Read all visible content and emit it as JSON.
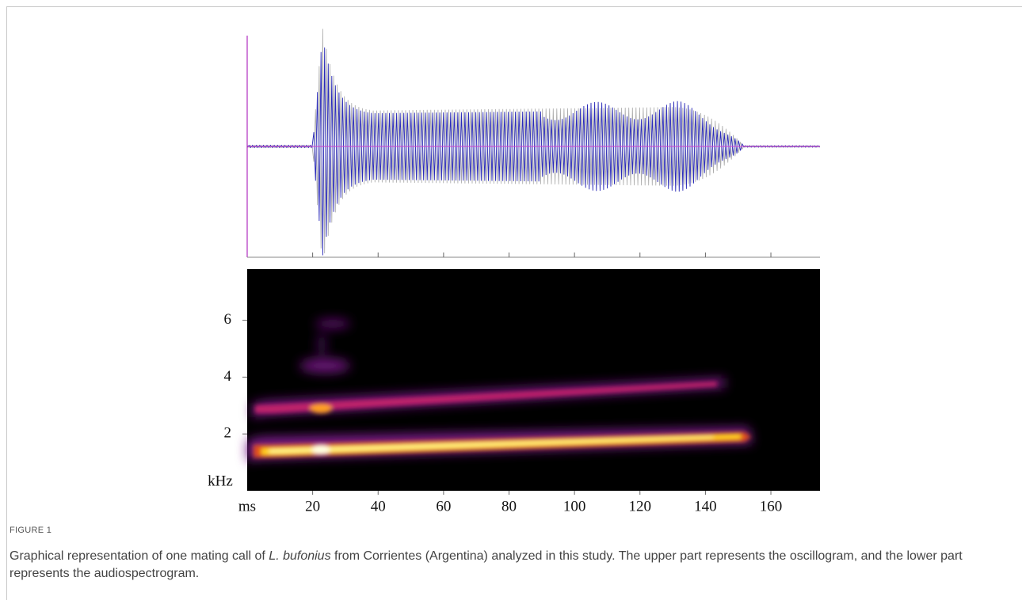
{
  "figure": {
    "label": "FIGURE 1",
    "caption": [
      "Graphical representation of one mating call of ",
      "L. bufonius",
      " from Corrientes (Argentina) analyzed in this study. The upper part represents the oscillogram, and the lower part represents the audiospectrogram."
    ],
    "x_axis": {
      "unit": "ms",
      "lim": [
        0,
        175
      ],
      "ticks": [
        20,
        40,
        60,
        80,
        100,
        120,
        140,
        160
      ]
    },
    "y_axis": {
      "unit": "kHz",
      "lim": [
        0,
        7.8
      ],
      "ticks": [
        2,
        4,
        6
      ]
    }
  }
}
